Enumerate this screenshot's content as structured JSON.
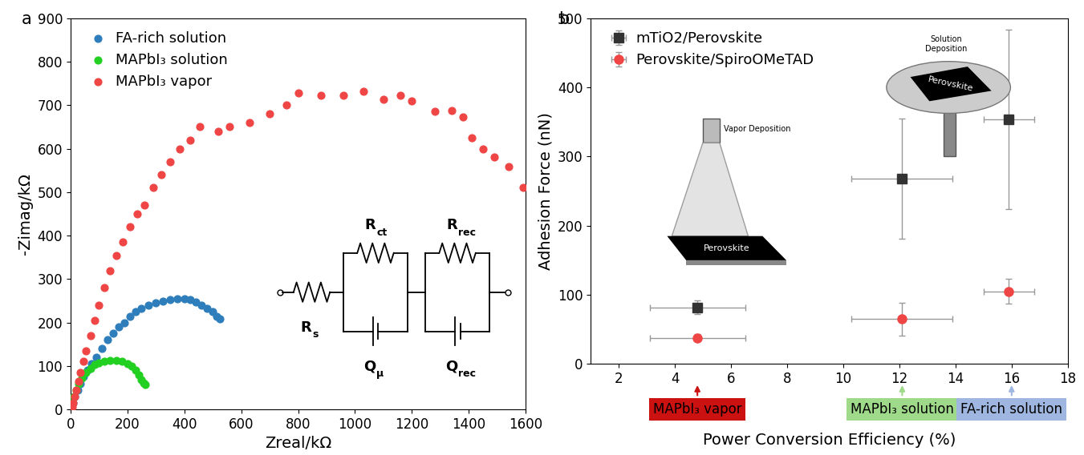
{
  "chart_data": [
    {
      "type": "scatter",
      "panel_label": "a",
      "x_label": "Zreal/kΩ",
      "y_label": "-Zimag/kΩ",
      "xlim": [
        0,
        1600
      ],
      "xticks": [
        0,
        200,
        400,
        600,
        800,
        1000,
        1200,
        1400,
        1600
      ],
      "ylim": [
        0,
        900
      ],
      "yticks": [
        0,
        100,
        200,
        300,
        400,
        500,
        600,
        700,
        800,
        900
      ],
      "legend": "upper left",
      "series": [
        {
          "name": "FA-rich solution",
          "color": "#2e7ebc",
          "marker": "circle",
          "x": [
            3,
            8,
            15,
            25,
            35,
            45,
            60,
            75,
            90,
            110,
            130,
            150,
            170,
            190,
            210,
            230,
            250,
            275,
            300,
            325,
            350,
            375,
            400,
            420,
            440,
            460,
            480,
            500,
            515,
            525
          ],
          "values": [
            5,
            15,
            30,
            45,
            60,
            75,
            90,
            105,
            120,
            140,
            160,
            175,
            190,
            200,
            215,
            225,
            232,
            240,
            245,
            250,
            252,
            255,
            255,
            252,
            248,
            240,
            232,
            225,
            215,
            208
          ]
        },
        {
          "name": "MAPbI₃ solution",
          "color": "#22d022",
          "marker": "circle",
          "x": [
            2,
            6,
            12,
            20,
            30,
            40,
            55,
            70,
            85,
            100,
            120,
            140,
            160,
            180,
            200,
            215,
            230,
            240,
            250,
            258,
            262
          ],
          "values": [
            5,
            15,
            30,
            45,
            60,
            72,
            85,
            95,
            103,
            108,
            110,
            112,
            112,
            110,
            105,
            100,
            90,
            80,
            68,
            62,
            58
          ]
        },
        {
          "name": "MAPbI₃ vapor",
          "color": "#f04545",
          "marker": "circle",
          "x": [
            5,
            10,
            15,
            20,
            28,
            35,
            45,
            55,
            70,
            85,
            100,
            120,
            140,
            160,
            185,
            210,
            235,
            260,
            290,
            320,
            350,
            385,
            420,
            455,
            520,
            560,
            630,
            700,
            760,
            800,
            880,
            960,
            1030,
            1100,
            1160,
            1200,
            1280,
            1340,
            1380,
            1410,
            1450,
            1490,
            1540,
            1590
          ],
          "values": [
            5,
            15,
            30,
            45,
            65,
            85,
            110,
            135,
            170,
            205,
            240,
            280,
            320,
            355,
            385,
            420,
            450,
            470,
            510,
            540,
            570,
            600,
            620,
            650,
            640,
            650,
            660,
            680,
            700,
            728,
            722,
            722,
            732,
            713,
            723,
            710,
            685,
            688,
            672,
            625,
            600,
            580,
            558,
            510
          ]
        }
      ],
      "circuit": [
        {
          "symbol": "R",
          "subscript": "s"
        },
        {
          "symbol": "R",
          "subscript": "ct"
        },
        {
          "symbol": "Q",
          "subscript": "μ"
        },
        {
          "symbol": "R",
          "subscript": "rec"
        },
        {
          "symbol": "Q",
          "subscript": "rec"
        }
      ]
    },
    {
      "type": "scatter",
      "panel_label": "b",
      "x_label": "Power Conversion Efficiency (%)",
      "y_label": "Adhesion Force (nN)",
      "xlim": [
        1,
        18
      ],
      "xticks": [
        2,
        4,
        6,
        8,
        10,
        12,
        14,
        16,
        18
      ],
      "ylim": [
        0,
        500
      ],
      "yticks": [
        0,
        100,
        200,
        300,
        400,
        500
      ],
      "legend": "upper left",
      "series": [
        {
          "name": "mTiO2/Perovskite",
          "color": "#333333",
          "marker": "square",
          "x": [
            4.8,
            12.1,
            15.9
          ],
          "x_error": [
            1.7,
            1.8,
            0.9
          ],
          "values": [
            82,
            268,
            354
          ],
          "y_error": [
            10,
            87,
            130
          ]
        },
        {
          "name": "Perovskite/SpiroOMeTAD",
          "color": "#f04545",
          "marker": "circle",
          "x": [
            4.8,
            12.1,
            15.9
          ],
          "x_error": [
            1.7,
            1.8,
            0.9
          ],
          "values": [
            38,
            65,
            105
          ],
          "y_error": [
            5,
            24,
            18
          ]
        }
      ],
      "category_markers": [
        {
          "label": "MAPbI₃ vapor",
          "x": 4.8,
          "color": "#cc1111"
        },
        {
          "label": "MAPbI₃ solution",
          "x": 12.1,
          "color": "#9fd98a"
        },
        {
          "label": "FA-rich solution",
          "x": 16.0,
          "color": "#9fb6e0"
        }
      ],
      "illustrations": {
        "vapor": {
          "title": "Vapor Deposition",
          "substrate": "Perovskite"
        },
        "solution": {
          "title": "Solution\nDeposition",
          "substrate": "Perovskite"
        }
      }
    }
  ]
}
